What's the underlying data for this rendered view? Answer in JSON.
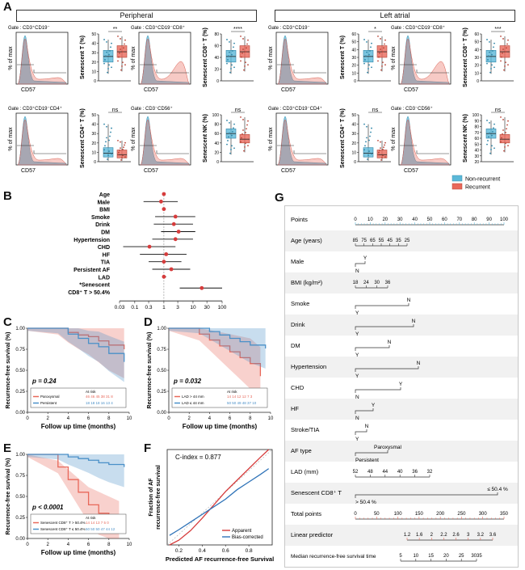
{
  "panel_a": {
    "letter": "A",
    "groups": [
      {
        "title": "Peripheral"
      },
      {
        "title": "Left atrial"
      }
    ],
    "flow": {
      "y_label": "% of max",
      "x_label": "CD57",
      "gates": [
        "Gate : CD3⁺CD19⁻",
        "Gate : CD3⁺CD19⁻CD8⁺",
        "Gate : CD3⁺CD19⁻CD4⁺",
        "Gate : CD3⁻CD56⁺",
        "Gate : CD3⁺CD19⁻",
        "Gate : CD3⁺CD19⁻CD8⁺",
        "Gate : CD3⁺CD19⁻CD4⁺",
        "Gate : CD3⁻CD56⁺"
      ]
    },
    "boxplots": {
      "y_labels": [
        "Senescent T (%)",
        "Senescent CD8⁺ T (%)",
        "Senescent CD4⁺ T (%)",
        "Senescent NK (%)",
        "Senescent T (%)",
        "Senescent CD8⁺ T (%)",
        "Senescent CD4⁺ T (%)",
        "Senescent NK (%)"
      ],
      "significance": [
        "**",
        "****",
        "ns",
        "ns",
        "*",
        "***",
        "ns",
        "ns"
      ],
      "ticks_peripheral_row1": [
        "50",
        "40",
        "30",
        "20",
        "10",
        "0"
      ],
      "ticks_peripheral_cd8": [
        "80",
        "60",
        "40",
        "20",
        "0"
      ],
      "ticks_peripheral_cd4": [
        "50",
        "40",
        "30",
        "20",
        "10",
        "0"
      ],
      "ticks_peripheral_nk": [
        "100",
        "80",
        "60",
        "40",
        "20",
        "0"
      ],
      "ticks_atrial_t": [
        "60",
        "50",
        "40",
        "30",
        "20",
        "10",
        "0"
      ],
      "ticks_atrial_cd8": [
        "60",
        "50",
        "40",
        "30",
        "20",
        "10",
        "0"
      ],
      "ticks_atrial_cd4": [
        "50",
        "40",
        "30",
        "20",
        "10",
        "0"
      ],
      "ticks_atrial_nk": [
        "100",
        "90",
        "80",
        "70",
        "60",
        "50",
        "40",
        "30",
        "20"
      ]
    },
    "legend": [
      {
        "label": "Non-recurrent",
        "color": "#5bb8d8"
      },
      {
        "label": "Recurrent",
        "color": "#e8685a"
      }
    ]
  },
  "panel_b": {
    "letter": "B",
    "variables": [
      "Age",
      "Male",
      "BMI",
      "Smoke",
      "Drink",
      "DM",
      "Hypertension",
      "CHD",
      "HF",
      "TIA",
      "Persistent AF",
      "LAD",
      "*Senescent",
      "CD8⁺ T > 50.4%"
    ],
    "x_ticks": [
      "0.03",
      "0.1",
      "0.3",
      "1",
      "3",
      "10",
      "30",
      "100"
    ],
    "chart_data": {
      "type": "forest",
      "x_scale": "log",
      "categories": [
        "Age",
        "Male",
        "BMI",
        "Smoke",
        "Drink",
        "DM",
        "Hypertension",
        "CHD",
        "HF",
        "TIA",
        "Persistent AF",
        "LAD",
        "Senescent CD8+ T > 50.4%"
      ],
      "estimates": [
        1.0,
        0.8,
        1.0,
        2.5,
        2.2,
        3.2,
        2.5,
        0.32,
        1.2,
        1.0,
        1.8,
        1.0,
        20
      ],
      "lower": [
        0.95,
        0.2,
        0.9,
        0.5,
        0.45,
        0.8,
        0.4,
        0.04,
        0.15,
        0.3,
        0.4,
        0.9,
        3.5
      ],
      "upper": [
        1.1,
        3.0,
        1.15,
        12,
        10,
        12,
        10,
        2.5,
        6,
        4,
        8,
        1.2,
        100
      ],
      "reference_line": 1,
      "xlim": [
        0.03,
        100
      ]
    }
  },
  "km_common": {
    "ylabel": "Recurrence-free survival (%)",
    "xlabel": "Follow up time (months)",
    "y_ticks": [
      "1.00",
      "0.75",
      "0.50",
      "0.25",
      "0.00"
    ],
    "x_ticks": [
      "0",
      "2",
      "4",
      "6",
      "8",
      "10"
    ],
    "at_risk": "At risk"
  },
  "panel_c": {
    "letter": "C",
    "p_value": "p = 0.24",
    "legend": [
      {
        "label": "Paroxysmal",
        "color": "#e8685a",
        "risk": "46  46  45  38  31  8"
      },
      {
        "label": "Persistent",
        "color": "#4a90c8",
        "risk": "18  18  18  16  13  4"
      }
    ],
    "chart_data": {
      "type": "line",
      "series": [
        {
          "name": "Paroxysmal",
          "x": [
            0,
            3,
            4,
            5,
            6,
            7,
            8,
            9.5
          ],
          "y": [
            1.0,
            1.0,
            0.95,
            0.92,
            0.9,
            0.85,
            0.8,
            0.75
          ]
        },
        {
          "name": "Persistent",
          "x": [
            0,
            3,
            4,
            5,
            6,
            7,
            8,
            9.5
          ],
          "y": [
            1.0,
            1.0,
            0.93,
            0.88,
            0.82,
            0.78,
            0.7,
            0.6
          ]
        }
      ],
      "xlim": [
        0,
        10
      ],
      "ylim": [
        0,
        1
      ]
    }
  },
  "panel_d": {
    "letter": "D",
    "p_value": "p = 0.032",
    "legend": [
      {
        "label": "LAD > 44 mm",
        "color": "#e8685a",
        "risk": "14  14  12  12  7  3"
      },
      {
        "label": "LAD ≤ 44 mm",
        "color": "#4a90c8",
        "risk": "50  50  49  48  37  10"
      }
    ],
    "chart_data": {
      "type": "line",
      "series": [
        {
          "name": "LAD > 44 mm",
          "x": [
            0,
            3,
            4,
            5,
            6,
            7,
            8,
            9
          ],
          "y": [
            1.0,
            0.93,
            0.86,
            0.79,
            0.72,
            0.65,
            0.58,
            0.43
          ]
        },
        {
          "name": "LAD ≤ 44 mm",
          "x": [
            0,
            3,
            4,
            5,
            6,
            7,
            8,
            9.5
          ],
          "y": [
            1.0,
            1.0,
            0.96,
            0.92,
            0.88,
            0.84,
            0.8,
            0.76
          ]
        }
      ],
      "xlim": [
        0,
        10
      ],
      "ylim": [
        0,
        1
      ]
    }
  },
  "panel_e": {
    "letter": "E",
    "p_value": "p < 0.0001",
    "legend": [
      {
        "label": "Senescent CD8⁺ T > 50.4%",
        "color": "#e8685a",
        "risk": "14  14  13  7  5  0"
      },
      {
        "label": "Senescent CD8⁺ T ≤ 50.4%",
        "color": "#4a90c8",
        "risk": "50  50  50  47  44  12"
      }
    ],
    "chart_data": {
      "type": "line",
      "series": [
        {
          "name": "Senescent CD8+ T > 50.4%",
          "x": [
            0,
            3,
            4,
            5,
            6,
            7,
            8,
            9
          ],
          "y": [
            1.0,
            0.85,
            0.7,
            0.55,
            0.4,
            0.3,
            0.2,
            0.1
          ]
        },
        {
          "name": "Senescent CD8+ T ≤ 50.4%",
          "x": [
            0,
            3,
            4,
            5,
            6,
            7,
            8,
            9.5
          ],
          "y": [
            1.0,
            1.0,
            0.97,
            0.95,
            0.93,
            0.9,
            0.88,
            0.85
          ]
        }
      ],
      "xlim": [
        0,
        10
      ],
      "ylim": [
        0,
        1
      ]
    }
  },
  "panel_f": {
    "letter": "F",
    "c_index": "C-index = 0.877",
    "ylabel_line1": "Fraction of AF",
    "ylabel_line2": "recurrence-free survival",
    "xlabel": "Predicted AF recurrence-free Survival",
    "x_ticks": [
      "0.2",
      "0.4",
      "0.6",
      "0.8"
    ],
    "legend": [
      {
        "label": "Apparent",
        "color": "#d63c3c"
      },
      {
        "label": "Bias-corrected",
        "color": "#2f73b8"
      }
    ],
    "chart_data": {
      "type": "line",
      "series": [
        {
          "name": "Apparent",
          "x": [
            0.12,
            0.2,
            0.3,
            0.4,
            0.5,
            0.6,
            0.7,
            0.8,
            0.9,
            0.97
          ],
          "y": [
            0.0,
            0.05,
            0.15,
            0.28,
            0.42,
            0.56,
            0.68,
            0.8,
            0.92,
            1.0
          ]
        },
        {
          "name": "Bias-corrected",
          "x": [
            0.12,
            0.2,
            0.3,
            0.4,
            0.5,
            0.6,
            0.7,
            0.8,
            0.9,
            0.97
          ],
          "y": [
            0.1,
            0.16,
            0.24,
            0.32,
            0.4,
            0.48,
            0.58,
            0.66,
            0.74,
            0.8
          ]
        }
      ],
      "xlim": [
        0.1,
        1.0
      ],
      "ylim": [
        0,
        1
      ]
    }
  },
  "panel_g": {
    "letter": "G",
    "rows": [
      {
        "label": "Points",
        "ticks": [
          "0",
          "10",
          "20",
          "30",
          "40",
          "50",
          "60",
          "70",
          "80",
          "90",
          "100"
        ]
      },
      {
        "label": "Age (years)",
        "ticks": [
          "85",
          "75",
          "65",
          "55",
          "45",
          "35",
          "25"
        ]
      },
      {
        "label": "Male",
        "top": "Y",
        "bottom": "N"
      },
      {
        "label": "BMI (kg/m²)",
        "ticks": [
          "18",
          "24",
          "30",
          "36"
        ]
      },
      {
        "label": "Smoke",
        "top": "N",
        "bottom": "Y"
      },
      {
        "label": "Drink",
        "top": "N",
        "bottom": "Y"
      },
      {
        "label": "DM",
        "top": "N",
        "bottom": "Y"
      },
      {
        "label": "Hypertension",
        "top": "N",
        "bottom": "Y"
      },
      {
        "label": "CHD",
        "top": "Y",
        "bottom": "N"
      },
      {
        "label": "HF",
        "top": "Y",
        "bottom": "N"
      },
      {
        "label": "Stroke/TIA",
        "top": "N",
        "bottom": "Y"
      },
      {
        "label": "AF type",
        "top": "Paroxysmal",
        "bottom": "Persistent"
      },
      {
        "label": "LAD (mm)",
        "ticks": [
          "52",
          "48",
          "44",
          "40",
          "36",
          "32"
        ]
      },
      {
        "label": "Senescent CD8⁺ T",
        "top": "≤ 50.4 %",
        "bottom": "> 50.4 %"
      },
      {
        "label": "Total points",
        "ticks": [
          "0",
          "50",
          "100",
          "150",
          "200",
          "250",
          "300",
          "350"
        ]
      },
      {
        "label": "Linear predictor",
        "ticks": [
          "1.2",
          "1.6",
          "2",
          "2.2",
          "2.6",
          "3",
          "3.2",
          "3.6"
        ]
      },
      {
        "label": "Median recurrence-free survival time",
        "ticks": [
          "5",
          "10",
          "15",
          "20",
          "25",
          "3035"
        ]
      }
    ]
  }
}
